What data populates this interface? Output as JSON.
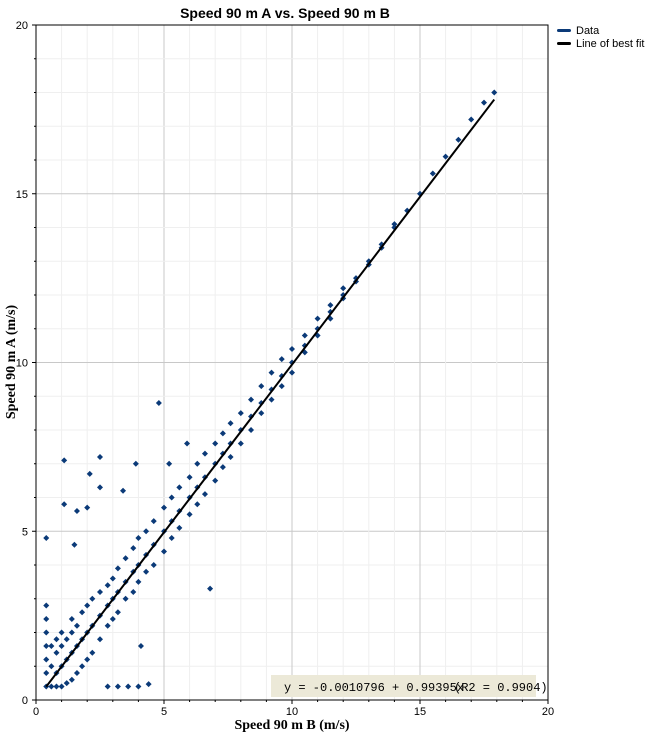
{
  "chart_data": {
    "type": "scatter",
    "title": "Speed 90 m A vs. Speed 90 m B",
    "xlabel": "Speed 90 m B (m/s)",
    "ylabel": "Speed 90 m A (m/s)",
    "xlim": [
      0,
      20
    ],
    "ylim": [
      0,
      20
    ],
    "xticks": [
      "0",
      "5",
      "10",
      "15",
      "20"
    ],
    "yticks": [
      "0",
      "5",
      "10",
      "15",
      "20"
    ],
    "grid": true,
    "legend_position": "top-right",
    "legend": [
      {
        "label": "Data",
        "color": "#0b3a78"
      },
      {
        "label": "Line of best fit",
        "color": "#000000"
      }
    ],
    "series": [
      {
        "name": "Data",
        "color": "#0b3a78",
        "points": [
          [
            0.4,
            0.4
          ],
          [
            0.4,
            0.8
          ],
          [
            0.4,
            1.2
          ],
          [
            0.4,
            1.6
          ],
          [
            0.4,
            2.0
          ],
          [
            0.4,
            2.4
          ],
          [
            0.4,
            2.8
          ],
          [
            0.6,
            0.4
          ],
          [
            0.6,
            1.0
          ],
          [
            0.6,
            1.6
          ],
          [
            0.8,
            0.4
          ],
          [
            0.8,
            0.8
          ],
          [
            0.8,
            1.4
          ],
          [
            0.8,
            1.8
          ],
          [
            1.0,
            0.4
          ],
          [
            1.0,
            1.0
          ],
          [
            1.0,
            1.6
          ],
          [
            1.0,
            2.0
          ],
          [
            1.2,
            0.5
          ],
          [
            1.2,
            1.2
          ],
          [
            1.2,
            1.8
          ],
          [
            1.4,
            0.6
          ],
          [
            1.4,
            1.4
          ],
          [
            1.4,
            2.0
          ],
          [
            1.4,
            2.4
          ],
          [
            1.6,
            0.8
          ],
          [
            1.6,
            1.6
          ],
          [
            1.6,
            2.2
          ],
          [
            1.8,
            1.0
          ],
          [
            1.8,
            1.8
          ],
          [
            1.8,
            2.6
          ],
          [
            2.0,
            1.2
          ],
          [
            2.0,
            2.0
          ],
          [
            2.0,
            2.8
          ],
          [
            2.2,
            1.4
          ],
          [
            2.2,
            2.2
          ],
          [
            2.2,
            3.0
          ],
          [
            2.5,
            1.8
          ],
          [
            2.5,
            2.5
          ],
          [
            2.5,
            3.2
          ],
          [
            2.8,
            2.2
          ],
          [
            2.8,
            2.8
          ],
          [
            2.8,
            3.4
          ],
          [
            3.0,
            2.4
          ],
          [
            3.0,
            3.0
          ],
          [
            3.0,
            3.6
          ],
          [
            3.2,
            2.6
          ],
          [
            3.2,
            3.2
          ],
          [
            3.2,
            3.9
          ],
          [
            3.5,
            3.0
          ],
          [
            3.5,
            3.5
          ],
          [
            3.5,
            4.2
          ],
          [
            3.8,
            3.2
          ],
          [
            3.8,
            3.8
          ],
          [
            3.8,
            4.5
          ],
          [
            4.0,
            3.5
          ],
          [
            4.0,
            4.0
          ],
          [
            4.0,
            4.8
          ],
          [
            4.3,
            3.8
          ],
          [
            4.3,
            4.3
          ],
          [
            4.3,
            5.0
          ],
          [
            4.6,
            4.0
          ],
          [
            4.6,
            4.6
          ],
          [
            4.6,
            5.3
          ],
          [
            5.0,
            4.4
          ],
          [
            5.0,
            5.0
          ],
          [
            5.0,
            5.7
          ],
          [
            5.3,
            4.8
          ],
          [
            5.3,
            5.3
          ],
          [
            5.3,
            6.0
          ],
          [
            5.6,
            5.1
          ],
          [
            5.6,
            5.6
          ],
          [
            5.6,
            6.3
          ],
          [
            6.0,
            5.5
          ],
          [
            6.0,
            6.0
          ],
          [
            6.0,
            6.6
          ],
          [
            6.3,
            5.8
          ],
          [
            6.3,
            6.3
          ],
          [
            6.3,
            7.0
          ],
          [
            6.6,
            6.1
          ],
          [
            6.6,
            6.6
          ],
          [
            6.6,
            7.3
          ],
          [
            7.0,
            6.5
          ],
          [
            7.0,
            7.0
          ],
          [
            7.0,
            7.6
          ],
          [
            7.3,
            6.9
          ],
          [
            7.3,
            7.3
          ],
          [
            7.3,
            7.9
          ],
          [
            7.6,
            7.2
          ],
          [
            7.6,
            7.6
          ],
          [
            7.6,
            8.2
          ],
          [
            8.0,
            7.6
          ],
          [
            8.0,
            8.0
          ],
          [
            8.0,
            8.5
          ],
          [
            8.4,
            8.0
          ],
          [
            8.4,
            8.4
          ],
          [
            8.4,
            8.9
          ],
          [
            8.8,
            8.5
          ],
          [
            8.8,
            8.8
          ],
          [
            8.8,
            9.3
          ],
          [
            9.2,
            8.9
          ],
          [
            9.2,
            9.2
          ],
          [
            9.2,
            9.7
          ],
          [
            9.6,
            9.3
          ],
          [
            9.6,
            9.6
          ],
          [
            9.6,
            10.1
          ],
          [
            10.0,
            9.7
          ],
          [
            10.0,
            10.0
          ],
          [
            10.0,
            10.4
          ],
          [
            10.5,
            10.3
          ],
          [
            10.5,
            10.5
          ],
          [
            10.5,
            10.8
          ],
          [
            11.0,
            10.8
          ],
          [
            11.0,
            11.0
          ],
          [
            11.0,
            11.3
          ],
          [
            11.5,
            11.3
          ],
          [
            11.5,
            11.5
          ],
          [
            11.5,
            11.7
          ],
          [
            12.0,
            11.9
          ],
          [
            12.0,
            12.0
          ],
          [
            12.0,
            12.2
          ],
          [
            12.5,
            12.4
          ],
          [
            12.5,
            12.5
          ],
          [
            13.0,
            12.9
          ],
          [
            13.0,
            13.0
          ],
          [
            13.5,
            13.4
          ],
          [
            13.5,
            13.5
          ],
          [
            14.0,
            14.0
          ],
          [
            14.0,
            14.1
          ],
          [
            14.5,
            14.5
          ],
          [
            15.0,
            15.0
          ],
          [
            15.5,
            15.6
          ],
          [
            16.0,
            16.1
          ],
          [
            16.5,
            16.6
          ],
          [
            17.0,
            17.2
          ],
          [
            17.5,
            17.7
          ],
          [
            17.9,
            18.0
          ],
          [
            4.8,
            8.8
          ],
          [
            1.1,
            7.1
          ],
          [
            2.5,
            7.2
          ],
          [
            0.4,
            4.8
          ],
          [
            2.1,
            6.7
          ],
          [
            6.8,
            3.3
          ],
          [
            5.9,
            7.6
          ],
          [
            5.2,
            7.0
          ],
          [
            3.9,
            7.0
          ],
          [
            1.1,
            5.8
          ],
          [
            1.6,
            5.6
          ],
          [
            1.5,
            4.6
          ],
          [
            2.5,
            6.3
          ],
          [
            3.4,
            6.2
          ],
          [
            2.0,
            5.7
          ],
          [
            4.4,
            0.47
          ],
          [
            4.1,
            1.6
          ],
          [
            4.0,
            0.4
          ],
          [
            3.6,
            0.4
          ],
          [
            3.2,
            0.4
          ],
          [
            2.8,
            0.4
          ]
        ]
      }
    ],
    "fit": {
      "name": "Line of best fit",
      "intercept": -0.0010796,
      "slope": 0.99395,
      "x_range": [
        0.4,
        17.9
      ],
      "color": "#000000"
    },
    "annotation": {
      "equation": "y = -0.0010796 + 0.99395x",
      "r2": "(R2 = 0.9904)"
    }
  }
}
